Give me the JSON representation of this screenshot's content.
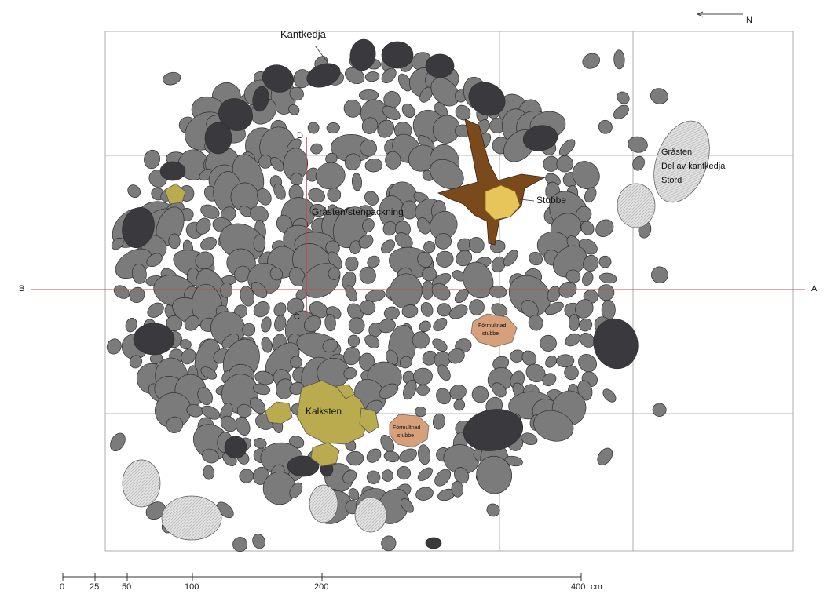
{
  "labels": {
    "kantkedja": "Kantkedja",
    "grasten_stenpackning": "Gråsten/stenpackning",
    "stubbe": "Stubbe",
    "grasten_right_line1": "Gråsten",
    "grasten_right_line2": "Del av kantkedja",
    "grasten_right_line3": "Stord",
    "kalksten": "Kalksten",
    "formultnad_stubbe_1_line1": "Förmultnad",
    "formultnad_stubbe_1_line2": "stubbe",
    "formultnad_stubbe_2_line1": "Förmultnad",
    "formultnad_stubbe_2_line2": "stubbe",
    "profile_b": "B",
    "profile_a": "A",
    "profile_d": "D",
    "profile_c": "C",
    "north": "N"
  },
  "scale_bar": {
    "ticks": [
      "0",
      "25",
      "50",
      "100",
      "200",
      "400"
    ],
    "unit": "cm"
  },
  "colors": {
    "grey_stone": "#7b7b7b",
    "dark_edge_stone": "#3a3a3e",
    "light_hatched_stone": "#dcdcdc",
    "limestone": "#b9ab4e",
    "stump": "#7a4a1c",
    "stump_core": "#e8c55a",
    "decayed_stump": "#d7a07a",
    "profile_line": "#c4474b",
    "grid_line": "#9a9a9a"
  }
}
